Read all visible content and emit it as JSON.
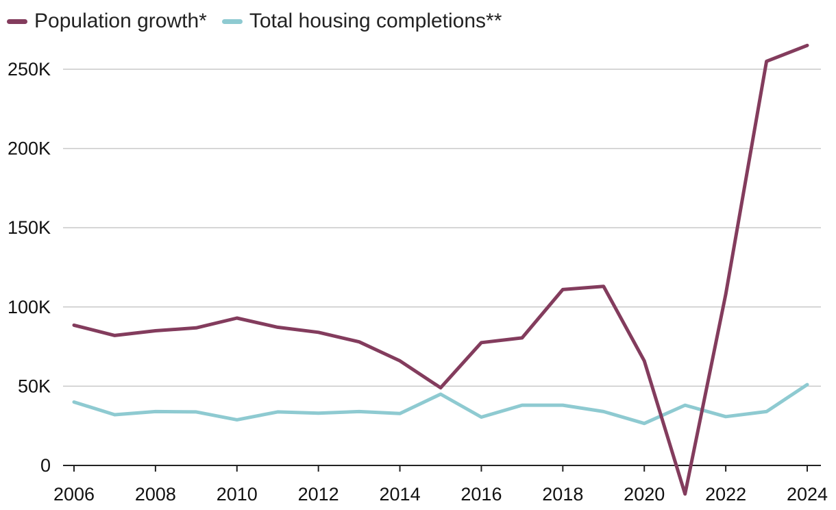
{
  "chart_data": {
    "type": "line",
    "title": "",
    "xlabel": "",
    "ylabel": "",
    "x": [
      2006,
      2007,
      2008,
      2009,
      2010,
      2011,
      2012,
      2013,
      2014,
      2015,
      2016,
      2017,
      2018,
      2019,
      2020,
      2021,
      2022,
      2023,
      2024
    ],
    "ylim": [
      0,
      265000
    ],
    "xlim": [
      2006,
      2024
    ],
    "yticks": [
      0,
      50000,
      100000,
      150000,
      200000,
      250000
    ],
    "ytick_labels": [
      "0",
      "50K",
      "100K",
      "150K",
      "200K",
      "250K"
    ],
    "xticks": [
      2006,
      2008,
      2010,
      2012,
      2014,
      2016,
      2018,
      2020,
      2022,
      2024
    ],
    "xtick_labels": [
      "2006",
      "2008",
      "2010",
      "2012",
      "2014",
      "2016",
      "2018",
      "2020",
      "2022",
      "2024"
    ],
    "grid": "horizontal",
    "legend_position": "top-left",
    "series": [
      {
        "name": "Population growth*",
        "color": "#833c5d",
        "values": [
          88500,
          82000,
          85000,
          86800,
          93000,
          87200,
          84000,
          78000,
          66000,
          49000,
          77500,
          80500,
          111000,
          113000,
          66000,
          -18000,
          108000,
          255000,
          265000
        ]
      },
      {
        "name": "Total housing completions**",
        "color": "#8ecad1",
        "values": [
          40000,
          32000,
          34000,
          33800,
          28800,
          33800,
          33000,
          34000,
          32800,
          45000,
          30500,
          38000,
          38000,
          34000,
          26500,
          38000,
          30800,
          34000,
          51000
        ]
      }
    ]
  }
}
